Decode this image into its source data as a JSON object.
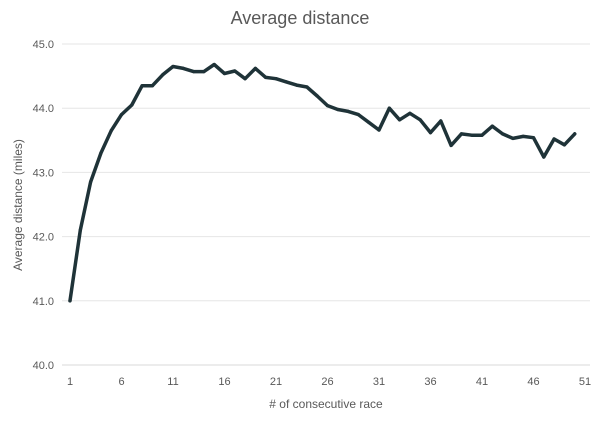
{
  "chart_data": {
    "type": "line",
    "title": "Average distance",
    "xlabel": "# of consecutive race",
    "ylabel": "Average distance (miles)",
    "xlim": [
      1,
      51
    ],
    "ylim": [
      40.0,
      45.0
    ],
    "x_ticks": [
      "1",
      "6",
      "11",
      "16",
      "21",
      "26",
      "31",
      "36",
      "41",
      "46",
      "51"
    ],
    "y_ticks": [
      "40.0",
      "41.0",
      "42.0",
      "43.0",
      "44.0",
      "45.0"
    ],
    "grid": "horizontal",
    "legend": "none",
    "line_color": "#1f3338",
    "series": [
      {
        "x": [
          1,
          2,
          3,
          4,
          5,
          6,
          7,
          8,
          9,
          10,
          11,
          12,
          13,
          14,
          15,
          16,
          17,
          18,
          19,
          20,
          21,
          22,
          23,
          24,
          25,
          26,
          27,
          28,
          29,
          30,
          31,
          32,
          33,
          34,
          35,
          36,
          37,
          38,
          39,
          40,
          41,
          42,
          43,
          44,
          45,
          46,
          47,
          48,
          49,
          50
        ],
        "values": [
          41.0,
          42.1,
          42.85,
          43.3,
          43.65,
          43.9,
          44.05,
          44.35,
          44.35,
          44.52,
          44.65,
          44.62,
          44.57,
          44.57,
          44.68,
          44.54,
          44.58,
          44.46,
          44.62,
          44.48,
          44.46,
          44.41,
          44.36,
          44.33,
          44.19,
          44.04,
          43.98,
          43.95,
          43.9,
          43.78,
          43.66,
          44.0,
          43.82,
          43.92,
          43.82,
          43.62,
          43.8,
          43.42,
          43.6,
          43.58,
          43.58,
          43.72,
          43.6,
          43.53,
          43.56,
          43.54,
          43.24,
          43.52,
          43.43,
          43.6
        ]
      }
    ]
  }
}
